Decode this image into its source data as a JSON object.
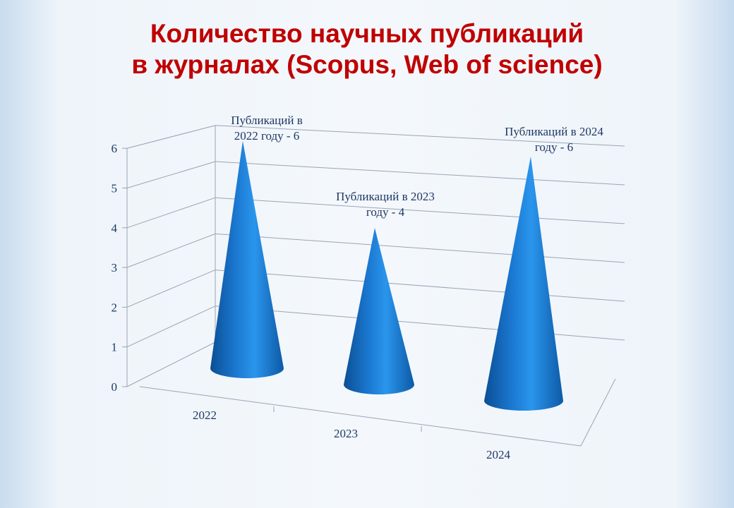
{
  "title_line1": "Количество научных публикаций",
  "title_line2": "в журналах  (Scopus, Web of science)",
  "chart_data": {
    "type": "bar",
    "style": "3d-cone",
    "categories": [
      "2022",
      "2023",
      "2024"
    ],
    "values": [
      6,
      4,
      6
    ],
    "data_labels": [
      [
        "Публикаций в",
        "2022 году  - 6"
      ],
      [
        "Публикаций в 2023",
        "году  - 4"
      ],
      [
        "Публикаций в 2024",
        "году  - 6"
      ]
    ],
    "yticks": [
      "0",
      "1",
      "2",
      "3",
      "4",
      "5",
      "6"
    ],
    "ylim": [
      0,
      6
    ],
    "grid": true,
    "colors": {
      "cone": "#1f7fd6",
      "title": "#c00000",
      "grid": "#9aa4b4",
      "text": "#1f3864"
    }
  }
}
